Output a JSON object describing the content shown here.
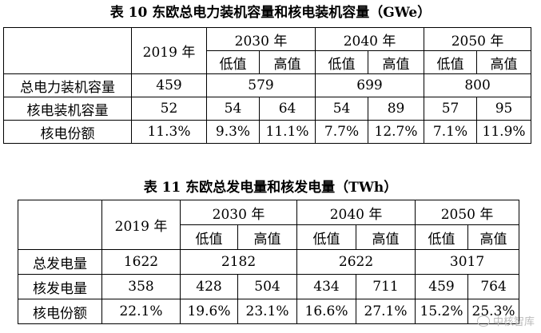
{
  "table1": {
    "caption": "表 10 东欧总电力装机容量和核电装机容量（GWe）",
    "year_base": "2019 年",
    "years": [
      "2030 年",
      "2040 年",
      "2050 年"
    ],
    "low": "低值",
    "high": "高值",
    "rows": [
      {
        "label": "总电力装机容量",
        "base": "459",
        "merged": [
          "579",
          "699",
          "800"
        ]
      },
      {
        "label": "核电装机容量",
        "base": "52",
        "cells": [
          "54",
          "64",
          "54",
          "89",
          "57",
          "95"
        ]
      },
      {
        "label": "核电份额",
        "base": "11.3%",
        "cells": [
          "9.3%",
          "11.1%",
          "7.7%",
          "12.7%",
          "7.1%",
          "11.9%"
        ]
      }
    ]
  },
  "table2": {
    "caption": "表 11 东欧总发电量和核发电量（TWh）",
    "year_base": "2019 年",
    "years": [
      "2030 年",
      "2040 年",
      "2050 年"
    ],
    "low": "低值",
    "high": "高值",
    "rows": [
      {
        "label": "总发电量",
        "base": "1622",
        "merged": [
          "2182",
          "2622",
          "3017"
        ]
      },
      {
        "label": "核发电量",
        "base": "358",
        "cells": [
          "428",
          "504",
          "434",
          "711",
          "459",
          "764"
        ]
      },
      {
        "label": "核电份额",
        "base": "22.1%",
        "cells": [
          "19.6%",
          "23.1%",
          "16.6%",
          "27.1%",
          "15.2%",
          "25.3%"
        ]
      }
    ]
  },
  "watermark": "中核智库"
}
